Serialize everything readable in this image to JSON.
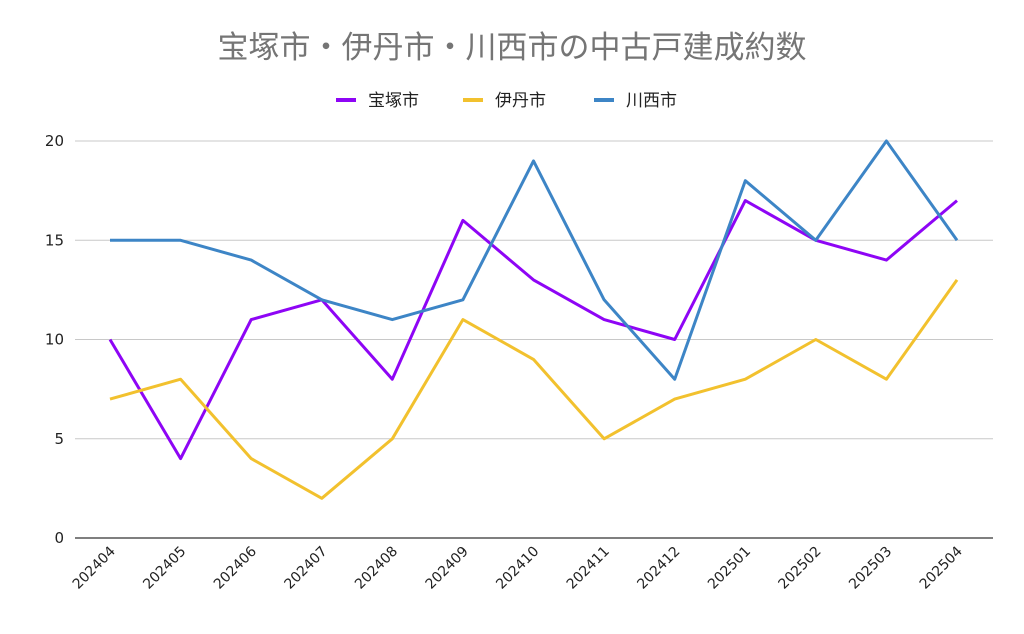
{
  "chart_data": {
    "type": "line",
    "title": "宝塚市・伊丹市・川西市の中古戸建成約数",
    "categories": [
      "202404",
      "202405",
      "202406",
      "202407",
      "202408",
      "202409",
      "202410",
      "202411",
      "202412",
      "202501",
      "202502",
      "202503",
      "202504"
    ],
    "series": [
      {
        "name": "宝塚市",
        "color": "#8e05f5",
        "values": [
          10,
          4,
          11,
          12,
          8,
          16,
          13,
          11,
          10,
          17,
          15,
          14,
          17
        ]
      },
      {
        "name": "伊丹市",
        "color": "#f2c12e",
        "values": [
          7,
          8,
          4,
          2,
          5,
          11,
          9,
          5,
          7,
          8,
          10,
          8,
          13
        ]
      },
      {
        "name": "川西市",
        "color": "#3d85c6",
        "values": [
          15,
          15,
          14,
          12,
          11,
          12,
          19,
          12,
          8,
          18,
          15,
          20,
          15
        ]
      }
    ],
    "ylim": [
      0,
      20
    ],
    "yticks": [
      0,
      5,
      10,
      15,
      20
    ],
    "grid": true,
    "legend_position": "top-center",
    "xlabel": "",
    "ylabel": ""
  }
}
